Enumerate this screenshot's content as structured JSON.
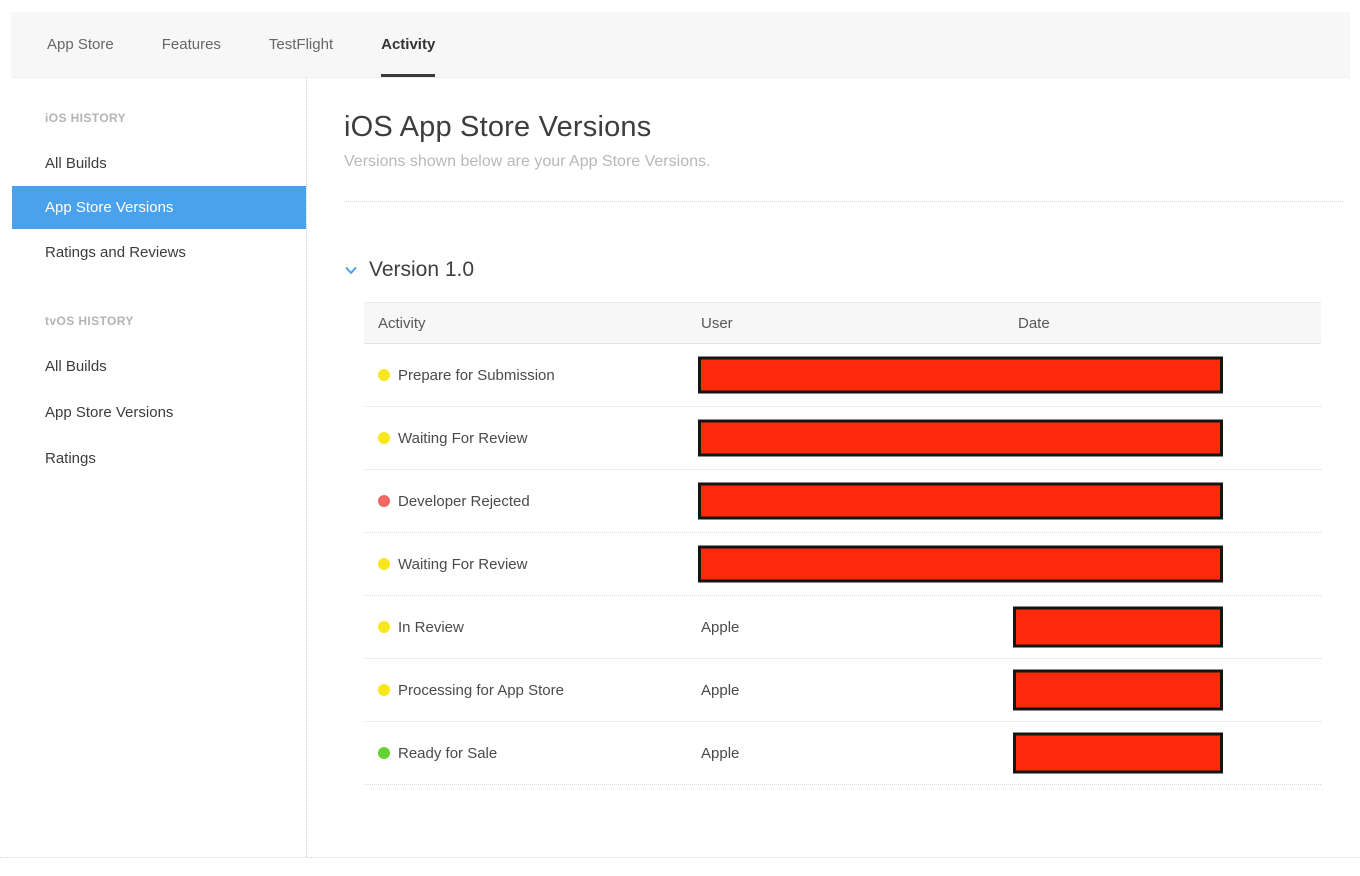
{
  "nav": {
    "tabs": [
      {
        "label": "App Store",
        "active": false
      },
      {
        "label": "Features",
        "active": false
      },
      {
        "label": "TestFlight",
        "active": false
      },
      {
        "label": "Activity",
        "active": true
      }
    ]
  },
  "sidebar": {
    "sections": [
      {
        "heading": "iOS HISTORY",
        "items": [
          {
            "label": "All Builds",
            "selected": false
          },
          {
            "label": "App Store Versions",
            "selected": true
          },
          {
            "label": "Ratings and Reviews",
            "selected": false
          }
        ]
      },
      {
        "heading": "tvOS HISTORY",
        "items": [
          {
            "label": "All Builds",
            "selected": false
          },
          {
            "label": "App Store Versions",
            "selected": false
          },
          {
            "label": "Ratings",
            "selected": false
          }
        ]
      }
    ]
  },
  "main": {
    "title": "iOS App Store Versions",
    "subtitle": "Versions shown below are your App Store Versions.",
    "section": {
      "title": "Version 1.0",
      "chevron_icon": "chevron-down",
      "expanded": true
    },
    "table": {
      "columns": [
        "Activity",
        "User",
        "Date"
      ],
      "rows": [
        {
          "activity": "Prepare for Submission",
          "status": "yellow",
          "status_color": "#F7E71C",
          "user": "",
          "redaction": "user_date"
        },
        {
          "activity": "Waiting For Review",
          "status": "yellow",
          "status_color": "#F7E71C",
          "user": "",
          "redaction": "user_date"
        },
        {
          "activity": "Developer Rejected",
          "status": "red",
          "status_color": "#F0685F",
          "user": "",
          "redaction": "user_date"
        },
        {
          "activity": "Waiting For Review",
          "status": "yellow",
          "status_color": "#F7E71C",
          "user": "",
          "redaction": "user_date"
        },
        {
          "activity": "In Review",
          "status": "yellow",
          "status_color": "#F7E71C",
          "user": "Apple",
          "redaction": "date"
        },
        {
          "activity": "Processing for App Store",
          "status": "yellow",
          "status_color": "#F7E71C",
          "user": "Apple",
          "redaction": "date"
        },
        {
          "activity": "Ready for Sale",
          "status": "green",
          "status_color": "#64D135",
          "user": "Apple",
          "redaction": "date"
        }
      ]
    }
  },
  "colors": {
    "accent_blue": "#4AA1EC",
    "selected_item_bg": "#4AA1EC",
    "nav_bg": "#f7f7f7",
    "table_header_bg": "#f7f7f7",
    "status_yellow": "#F7E71C",
    "status_red": "#F0685F",
    "status_green": "#64D135",
    "redaction_fill": "#FF2A0C",
    "redaction_border": "#141414"
  }
}
